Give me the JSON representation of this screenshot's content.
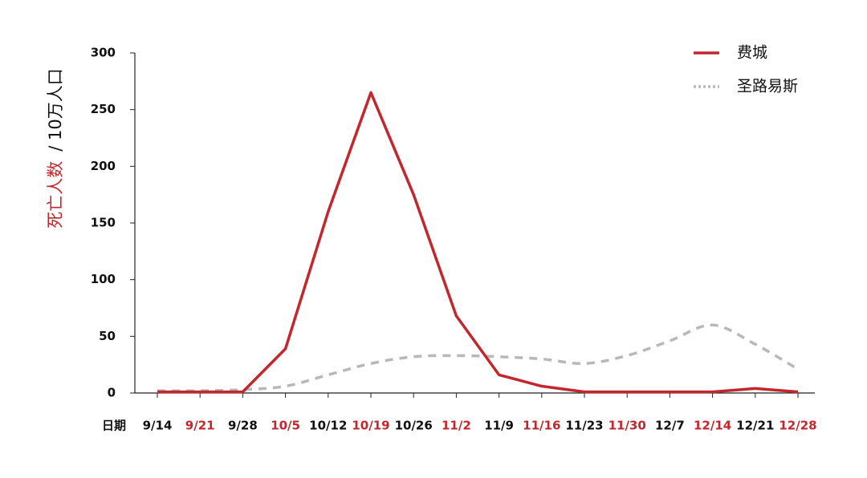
{
  "chart_data": {
    "type": "line",
    "ylabel_parts": [
      {
        "text": "死亡人数",
        "color": "#c1272d"
      },
      {
        "text": "/ 10万人口",
        "color": "#111111"
      }
    ],
    "xlabel": "日期",
    "categories": [
      "9/14",
      "9/21",
      "9/28",
      "10/5",
      "10/12",
      "10/19",
      "10/26",
      "11/2",
      "11/9",
      "11/16",
      "11/23",
      "11/30",
      "12/7",
      "12/14",
      "12/21",
      "12/28"
    ],
    "category_colors": [
      "#111111",
      "#c1272d",
      "#111111",
      "#c1272d",
      "#111111",
      "#c1272d",
      "#111111",
      "#c1272d",
      "#111111",
      "#c1272d",
      "#111111",
      "#c1272d",
      "#111111",
      "#c1272d",
      "#111111",
      "#c1272d"
    ],
    "series": [
      {
        "name": "费城",
        "color": "#c1272d",
        "style": "solid",
        "smooth": false,
        "values": [
          1,
          1,
          1,
          39,
          160,
          265,
          175,
          68,
          16,
          6,
          1,
          1,
          1,
          1,
          4,
          1
        ]
      },
      {
        "name": "圣路易斯",
        "color": "#b8b8b8",
        "style": "dashed",
        "smooth": true,
        "values": [
          2,
          2,
          3,
          6,
          16,
          26,
          32,
          33,
          32,
          30,
          26,
          33,
          46,
          60,
          43,
          21
        ]
      }
    ],
    "ylim": [
      0,
      300
    ],
    "yticks": [
      0,
      50,
      100,
      150,
      200,
      250,
      300
    ],
    "legend": "top-right"
  }
}
